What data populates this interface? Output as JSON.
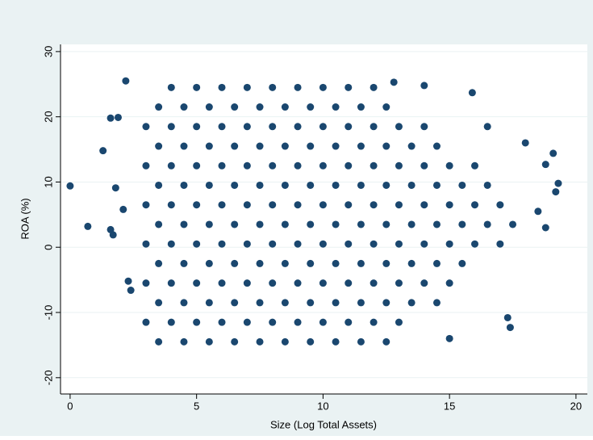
{
  "chart_data": {
    "type": "scatter",
    "x_label": "Size (Log Total Assets)",
    "y_label": "ROA (%)",
    "color": "#1a476f",
    "grid": true,
    "xlim": [
      -0.38,
      20.45
    ],
    "ylim": [
      -22.5,
      31.1
    ],
    "xticks": [
      0,
      5,
      10,
      15,
      20
    ],
    "yticks": [
      -20,
      -10,
      0,
      10,
      20,
      30
    ],
    "series": [
      {
        "name": "ROA",
        "color": "#1a476f",
        "x": [
          4,
          5,
          6,
          7,
          8,
          9,
          10,
          11,
          12,
          3.5,
          4.5,
          5.5,
          6.5,
          7.5,
          8.5,
          9.5,
          10.5,
          11.5,
          12.5,
          3,
          4,
          5,
          6,
          7,
          8,
          9,
          10,
          11,
          12,
          13,
          14,
          3.5,
          4.5,
          5.5,
          6.5,
          7.5,
          8.5,
          9.5,
          10.5,
          11.5,
          12.5,
          13.5,
          14.5,
          3,
          4,
          5,
          6,
          7,
          8,
          9,
          10,
          11,
          12,
          13,
          14,
          15,
          16,
          3.5,
          4.5,
          5.5,
          6.5,
          7.5,
          8.5,
          9.5,
          10.5,
          11.5,
          12.5,
          13.5,
          14.5,
          15.5,
          16.5,
          3,
          4,
          5,
          6,
          7,
          8,
          9,
          10,
          11,
          12,
          13,
          14,
          15,
          16,
          17,
          3.5,
          4.5,
          5.5,
          6.5,
          7.5,
          8.5,
          9.5,
          10.5,
          11.5,
          12.5,
          13.5,
          14.5,
          15.5,
          16.5,
          17.5,
          3,
          4,
          5,
          6,
          7,
          8,
          9,
          10,
          11,
          12,
          13,
          14,
          15,
          16,
          17,
          3.5,
          4.5,
          5.5,
          6.5,
          7.5,
          8.5,
          9.5,
          10.5,
          11.5,
          12.5,
          13.5,
          14.5,
          15.5,
          3,
          4,
          5,
          6,
          7,
          8,
          9,
          10,
          11,
          12,
          13,
          14,
          15,
          3.5,
          4.5,
          5.5,
          6.5,
          7.5,
          8.5,
          9.5,
          10.5,
          11.5,
          12.5,
          13.5,
          14.5,
          3,
          4,
          5,
          6,
          7,
          8,
          9,
          10,
          11,
          12,
          13,
          3.5,
          4.5,
          5.5,
          6.5,
          7.5,
          8.5,
          9.5,
          10.5,
          11.5,
          12.5,
          0,
          0.7,
          1.3,
          1.6,
          1.9,
          1.6,
          1.7,
          1.8,
          2.2,
          2.3,
          2.4,
          2.1,
          19.2,
          19.1,
          18.8,
          18.8,
          18,
          17.4,
          15.9,
          14,
          12.8,
          19.3,
          15,
          16.5,
          17.3,
          18.5
        ],
        "values": [
          24.5,
          24.5,
          24.5,
          24.5,
          24.5,
          24.5,
          24.5,
          24.5,
          24.5,
          21.5,
          21.5,
          21.5,
          21.5,
          21.5,
          21.5,
          21.5,
          21.5,
          21.5,
          21.5,
          18.5,
          18.5,
          18.5,
          18.5,
          18.5,
          18.5,
          18.5,
          18.5,
          18.5,
          18.5,
          18.5,
          18.5,
          15.5,
          15.5,
          15.5,
          15.5,
          15.5,
          15.5,
          15.5,
          15.5,
          15.5,
          15.5,
          15.5,
          15.5,
          12.5,
          12.5,
          12.5,
          12.5,
          12.5,
          12.5,
          12.5,
          12.5,
          12.5,
          12.5,
          12.5,
          12.5,
          12.5,
          12.5,
          9.5,
          9.5,
          9.5,
          9.5,
          9.5,
          9.5,
          9.5,
          9.5,
          9.5,
          9.5,
          9.5,
          9.5,
          9.5,
          9.5,
          6.5,
          6.5,
          6.5,
          6.5,
          6.5,
          6.5,
          6.5,
          6.5,
          6.5,
          6.5,
          6.5,
          6.5,
          6.5,
          6.5,
          6.5,
          3.5,
          3.5,
          3.5,
          3.5,
          3.5,
          3.5,
          3.5,
          3.5,
          3.5,
          3.5,
          3.5,
          3.5,
          3.5,
          3.5,
          3.5,
          0.5,
          0.5,
          0.5,
          0.5,
          0.5,
          0.5,
          0.5,
          0.5,
          0.5,
          0.5,
          0.5,
          0.5,
          0.5,
          0.5,
          0.5,
          -2.5,
          -2.5,
          -2.5,
          -2.5,
          -2.5,
          -2.5,
          -2.5,
          -2.5,
          -2.5,
          -2.5,
          -2.5,
          -2.5,
          -2.5,
          -5.5,
          -5.5,
          -5.5,
          -5.5,
          -5.5,
          -5.5,
          -5.5,
          -5.5,
          -5.5,
          -5.5,
          -5.5,
          -5.5,
          -5.5,
          -8.5,
          -8.5,
          -8.5,
          -8.5,
          -8.5,
          -8.5,
          -8.5,
          -8.5,
          -8.5,
          -8.5,
          -8.5,
          -8.5,
          -11.5,
          -11.5,
          -11.5,
          -11.5,
          -11.5,
          -11.5,
          -11.5,
          -11.5,
          -11.5,
          -11.5,
          -11.5,
          -14.5,
          -14.5,
          -14.5,
          -14.5,
          -14.5,
          -14.5,
          -14.5,
          -14.5,
          -14.5,
          -14.5,
          9.4,
          3.2,
          14.8,
          19.8,
          19.9,
          2.7,
          1.9,
          9.1,
          25.5,
          -5.2,
          -6.6,
          5.8,
          8.5,
          14.4,
          12.7,
          3,
          16,
          -12.3,
          23.7,
          24.8,
          25.3,
          9.8,
          -14,
          18.5,
          -10.8,
          5.5
        ]
      }
    ]
  }
}
